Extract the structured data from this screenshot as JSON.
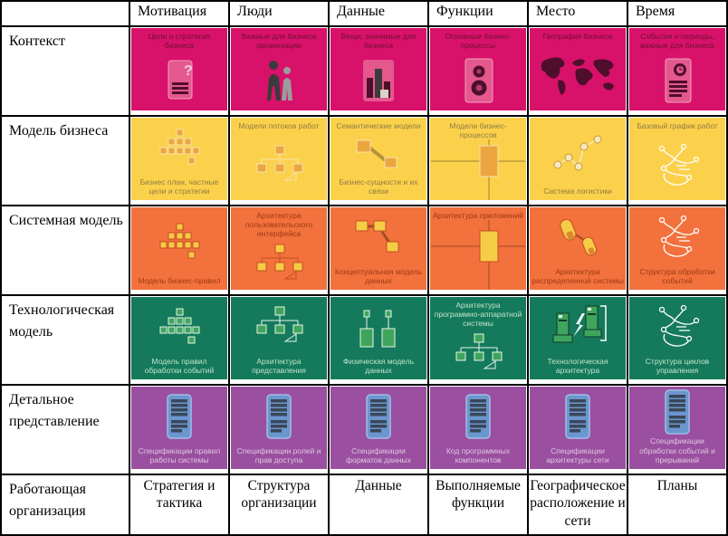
{
  "table": {
    "corner_label": "",
    "column_headers": [
      "Мотивация",
      "Люди",
      "Данные",
      "Функции",
      "Место",
      "Время"
    ],
    "rows": [
      {
        "label": "Контекст",
        "color": "#D8116B",
        "text_color": "#6E1130",
        "cells": [
          {
            "top": "Цели и стратегия бизнеса",
            "bottom": "",
            "icon": "doc-question"
          },
          {
            "top": "Важные для бизнеса организации",
            "bottom": "",
            "icon": "people"
          },
          {
            "top": "Вещи, значимые для бизнеса",
            "bottom": "",
            "icon": "buildings"
          },
          {
            "top": "Основные бизнес-процессы",
            "bottom": "",
            "icon": "doc-gears"
          },
          {
            "top": "География бизнеса",
            "bottom": "",
            "icon": "world-map"
          },
          {
            "top": "События и периоды, важные для бизнеса",
            "bottom": "",
            "icon": "doc-clock"
          }
        ]
      },
      {
        "label": "Модель бизнеса",
        "color": "#FBD14B",
        "text_color": "#8F7B45",
        "cells": [
          {
            "top": "",
            "bottom": "Бизнес план, частные цели и стратегии",
            "icon": "pyramid"
          },
          {
            "top": "Модели потоков работ",
            "bottom": "",
            "icon": "tree"
          },
          {
            "top": "Семантические модели",
            "bottom": "Бизнес-сущности и их связи",
            "icon": "link-boxes"
          },
          {
            "top": "Модели бизнес-процессов",
            "bottom": "",
            "icon": "process-rect"
          },
          {
            "top": "",
            "bottom": "Система логистики",
            "icon": "network-nodes"
          },
          {
            "top": "Базовый график работ",
            "bottom": "",
            "icon": "sketch"
          }
        ]
      },
      {
        "label": "Системная модель",
        "color": "#F2713D",
        "text_color": "#9E3A14",
        "cells": [
          {
            "top": "",
            "bottom": "Модель бизнес-правил",
            "icon": "pyramid"
          },
          {
            "top": "Архитектура пользовательского интерфейса",
            "bottom": "",
            "icon": "tree"
          },
          {
            "top": "",
            "bottom": "Концептуальная модель данных",
            "icon": "link-boxes3"
          },
          {
            "top": "Архитектура приложений",
            "bottom": "",
            "icon": "process-rect"
          },
          {
            "top": "",
            "bottom": "Архитектура распределенной системы",
            "icon": "devices"
          },
          {
            "top": "",
            "bottom": "Структура обработки событий",
            "icon": "sketch"
          }
        ]
      },
      {
        "label": "Технологическая модель",
        "color": "#147A5B",
        "text_color": "#C3E3CC",
        "cells": [
          {
            "top": "",
            "bottom": "Модель правил обработки событий",
            "icon": "pyramid"
          },
          {
            "top": "",
            "bottom": "Архитектура представления",
            "icon": "tree"
          },
          {
            "top": "",
            "bottom": "Физическая модель данных",
            "icon": "data-boxes"
          },
          {
            "top": "Архитектура программно-аппаратной системы",
            "bottom": "",
            "icon": "tree"
          },
          {
            "top": "",
            "bottom": "Технологическая архитектура",
            "icon": "computers"
          },
          {
            "top": "",
            "bottom": "Структура циклов управления",
            "icon": "sketch"
          }
        ]
      },
      {
        "label": "Детальное представление",
        "color": "#9B4FA0",
        "text_color": "#DDC9DF",
        "cells": [
          {
            "top": "",
            "bottom": "Спецификации правил работы системы",
            "icon": "spec-doc"
          },
          {
            "top": "",
            "bottom": "Спецификации ролей и прав доступа",
            "icon": "spec-doc"
          },
          {
            "top": "",
            "bottom": "Спецификации форматов данных",
            "icon": "spec-doc"
          },
          {
            "top": "",
            "bottom": "Код программных компонентов",
            "icon": "spec-doc"
          },
          {
            "top": "",
            "bottom": "Спецификации архитектуры сети",
            "icon": "spec-doc"
          },
          {
            "top": "",
            "bottom": "Спецификации обработки событий и прерываний",
            "icon": "spec-doc"
          }
        ]
      }
    ],
    "footer": {
      "label": "Работающая организация",
      "cells": [
        "Стратегия и тактика",
        "Структура организации",
        "Данные",
        "Выполняемые функции",
        "Географическое расположение и сети",
        "Планы"
      ]
    }
  }
}
